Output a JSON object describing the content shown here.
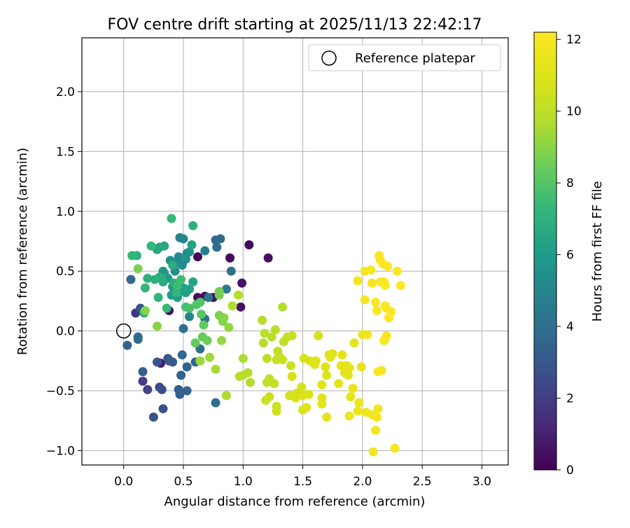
{
  "chart_data": {
    "type": "scatter",
    "title": "FOV centre drift starting at 2025/11/13 22:42:17",
    "xlabel": "Angular distance from reference (arcmin)",
    "ylabel": "Rotation from reference (arcmin)",
    "xlim": [
      -0.35,
      3.22
    ],
    "ylim": [
      -1.12,
      2.45
    ],
    "xticks": [
      0.0,
      0.5,
      1.0,
      1.5,
      2.0,
      2.5,
      3.0
    ],
    "xtick_labels": [
      "0.0",
      "0.5",
      "1.0",
      "1.5",
      "2.0",
      "2.5",
      "3.0"
    ],
    "yticks": [
      -1.0,
      -0.5,
      0.0,
      0.5,
      1.0,
      1.5,
      2.0
    ],
    "ytick_labels": [
      "−1.0",
      "−0.5",
      "0.0",
      "0.5",
      "1.0",
      "1.5",
      "2.0"
    ],
    "grid": true,
    "legend": {
      "placement": "top-right",
      "entries": [
        "Reference platepar"
      ]
    },
    "reference_point": {
      "x": 0.0,
      "y": 0.0,
      "label": "Reference platepar"
    },
    "colorbar": {
      "label": "Hours from first FF file",
      "colormap": "viridis",
      "range": [
        0,
        12.2
      ],
      "ticks": [
        0,
        2,
        4,
        6,
        8,
        10,
        12
      ],
      "tick_labels": [
        "0",
        "2",
        "4",
        "6",
        "8",
        "10",
        "12"
      ]
    },
    "points": [
      {
        "x": 0.62,
        "y": 0.62,
        "h": 0.2
      },
      {
        "x": 0.62,
        "y": 0.28,
        "h": 0.3
      },
      {
        "x": 0.68,
        "y": 0.29,
        "h": 0.4
      },
      {
        "x": 0.75,
        "y": 0.28,
        "h": 0.5
      },
      {
        "x": 0.38,
        "y": 0.17,
        "h": 0.6
      },
      {
        "x": 0.89,
        "y": 0.61,
        "h": 0.3
      },
      {
        "x": 1.05,
        "y": 0.72,
        "h": 0.2
      },
      {
        "x": 1.21,
        "y": 0.61,
        "h": 0.4
      },
      {
        "x": 0.99,
        "y": 0.4,
        "h": 0.6
      },
      {
        "x": 0.98,
        "y": 0.2,
        "h": 0.5
      },
      {
        "x": 0.31,
        "y": -0.27,
        "h": 0.9
      },
      {
        "x": 0.1,
        "y": 0.15,
        "h": 1.8
      },
      {
        "x": 0.16,
        "y": -0.42,
        "h": 2.0
      },
      {
        "x": 0.2,
        "y": -0.49,
        "h": 2.2
      },
      {
        "x": 0.3,
        "y": -0.47,
        "h": 2.4
      },
      {
        "x": 0.32,
        "y": -0.49,
        "h": 2.6
      },
      {
        "x": 0.33,
        "y": -0.65,
        "h": 2.7
      },
      {
        "x": 0.25,
        "y": -0.72,
        "h": 2.8
      },
      {
        "x": 0.28,
        "y": -0.26,
        "h": 2.9
      },
      {
        "x": 0.37,
        "y": -0.23,
        "h": 3.0
      },
      {
        "x": 0.38,
        "y": -0.25,
        "h": 3.1
      },
      {
        "x": 0.41,
        "y": -0.26,
        "h": 3.1
      },
      {
        "x": 0.46,
        "y": -0.49,
        "h": 3.2
      },
      {
        "x": 0.47,
        "y": -0.53,
        "h": 3.3
      },
      {
        "x": 0.48,
        "y": -0.37,
        "h": 3.4
      },
      {
        "x": 0.53,
        "y": -0.5,
        "h": 3.4
      },
      {
        "x": 0.53,
        "y": -0.3,
        "h": 3.5
      },
      {
        "x": 0.49,
        "y": -0.2,
        "h": 3.6
      },
      {
        "x": 0.6,
        "y": -0.26,
        "h": 3.7
      },
      {
        "x": 0.16,
        "y": -0.34,
        "h": 3.3
      },
      {
        "x": 0.03,
        "y": -0.12,
        "h": 3.5
      },
      {
        "x": 0.06,
        "y": 0.43,
        "h": 3.6
      },
      {
        "x": 0.12,
        "y": -0.07,
        "h": 3.7
      },
      {
        "x": 0.12,
        "y": -0.05,
        "h": 3.8
      },
      {
        "x": 0.14,
        "y": 0.19,
        "h": 2.8
      },
      {
        "x": 0.77,
        "y": -0.6,
        "h": 3.9
      },
      {
        "x": 0.5,
        "y": 0.02,
        "h": 4.0
      },
      {
        "x": 0.64,
        "y": -0.15,
        "h": 4.1
      },
      {
        "x": 0.68,
        "y": 0.1,
        "h": 4.2
      },
      {
        "x": 0.71,
        "y": 0.28,
        "h": 4.3
      },
      {
        "x": 0.77,
        "y": 0.76,
        "h": 3.7
      },
      {
        "x": 0.81,
        "y": 0.77,
        "h": 3.8
      },
      {
        "x": 0.78,
        "y": 0.7,
        "h": 3.9
      },
      {
        "x": 0.9,
        "y": 0.5,
        "h": 4.1
      },
      {
        "x": 0.86,
        "y": 0.35,
        "h": 4.5
      },
      {
        "x": 0.68,
        "y": 0.67,
        "h": 4.8
      },
      {
        "x": 0.55,
        "y": 0.12,
        "h": 5.0
      },
      {
        "x": 0.53,
        "y": 0.65,
        "h": 5.0
      },
      {
        "x": 0.47,
        "y": 0.78,
        "h": 5.1
      },
      {
        "x": 0.5,
        "y": 0.77,
        "h": 5.1
      },
      {
        "x": 0.46,
        "y": 0.62,
        "h": 5.2
      },
      {
        "x": 0.49,
        "y": 0.55,
        "h": 5.3
      },
      {
        "x": 0.45,
        "y": 0.57,
        "h": 5.2
      },
      {
        "x": 0.43,
        "y": 0.5,
        "h": 5.4
      },
      {
        "x": 0.52,
        "y": 0.6,
        "h": 5.5
      },
      {
        "x": 0.55,
        "y": 0.66,
        "h": 5.6
      },
      {
        "x": 0.39,
        "y": 0.59,
        "h": 5.6
      },
      {
        "x": 0.33,
        "y": 0.5,
        "h": 5.7
      },
      {
        "x": 0.34,
        "y": 0.48,
        "h": 5.8
      },
      {
        "x": 0.41,
        "y": 0.37,
        "h": 5.8
      },
      {
        "x": 0.37,
        "y": 0.44,
        "h": 5.9
      },
      {
        "x": 0.4,
        "y": 0.3,
        "h": 6.0
      },
      {
        "x": 0.45,
        "y": 0.28,
        "h": 6.0
      },
      {
        "x": 0.47,
        "y": 0.33,
        "h": 6.1
      },
      {
        "x": 0.5,
        "y": 0.36,
        "h": 6.2
      },
      {
        "x": 0.52,
        "y": 0.32,
        "h": 6.2
      },
      {
        "x": 0.55,
        "y": 0.35,
        "h": 6.3
      },
      {
        "x": 0.58,
        "y": 0.41,
        "h": 6.4
      },
      {
        "x": 0.57,
        "y": 0.72,
        "h": 6.4
      },
      {
        "x": 0.34,
        "y": 0.71,
        "h": 6.5
      },
      {
        "x": 0.3,
        "y": 0.7,
        "h": 6.6
      },
      {
        "x": 0.28,
        "y": 0.68,
        "h": 6.6
      },
      {
        "x": 0.33,
        "y": 0.41,
        "h": 6.7
      },
      {
        "x": 0.3,
        "y": 0.45,
        "h": 6.8
      },
      {
        "x": 0.32,
        "y": 0.44,
        "h": 6.9
      },
      {
        "x": 0.26,
        "y": 0.43,
        "h": 7.0
      },
      {
        "x": 0.2,
        "y": 0.44,
        "h": 7.0
      },
      {
        "x": 0.17,
        "y": 0.15,
        "h": 7.1
      },
      {
        "x": 0.29,
        "y": 0.28,
        "h": 7.1
      },
      {
        "x": 0.18,
        "y": 0.36,
        "h": 7.2
      },
      {
        "x": 0.11,
        "y": 0.63,
        "h": 7.0
      },
      {
        "x": 0.07,
        "y": 0.63,
        "h": 7.3
      },
      {
        "x": 0.23,
        "y": 0.71,
        "h": 7.2
      },
      {
        "x": 0.4,
        "y": 0.94,
        "h": 7.3
      },
      {
        "x": 0.58,
        "y": 0.88,
        "h": 7.0
      },
      {
        "x": 0.41,
        "y": 0.55,
        "h": 6.8
      },
      {
        "x": 0.42,
        "y": 0.4,
        "h": 6.9
      },
      {
        "x": 0.44,
        "y": 0.32,
        "h": 7.2
      },
      {
        "x": 0.36,
        "y": 0.19,
        "h": 7.4
      },
      {
        "x": 0.45,
        "y": 0.38,
        "h": 7.5
      },
      {
        "x": 0.48,
        "y": 0.43,
        "h": 7.6
      },
      {
        "x": 0.52,
        "y": 0.2,
        "h": 7.7
      },
      {
        "x": 0.55,
        "y": 0.19,
        "h": 7.8
      },
      {
        "x": 0.61,
        "y": 0.22,
        "h": 7.9
      },
      {
        "x": 0.64,
        "y": 0.24,
        "h": 8.0
      },
      {
        "x": 0.65,
        "y": 0.14,
        "h": 8.1
      },
      {
        "x": 0.67,
        "y": 0.05,
        "h": 8.2
      },
      {
        "x": 0.6,
        "y": -0.1,
        "h": 8.3
      },
      {
        "x": 0.66,
        "y": -0.05,
        "h": 8.4
      },
      {
        "x": 0.7,
        "y": -0.08,
        "h": 8.5
      },
      {
        "x": 0.8,
        "y": 0.33,
        "h": 8.6
      },
      {
        "x": 0.8,
        "y": 0.3,
        "h": 8.7
      },
      {
        "x": 0.8,
        "y": 0.13,
        "h": 8.8
      },
      {
        "x": 0.83,
        "y": 0.08,
        "h": 8.9
      },
      {
        "x": 0.84,
        "y": 0.11,
        "h": 9.0
      },
      {
        "x": 0.88,
        "y": 0.03,
        "h": 9.1
      },
      {
        "x": 0.82,
        "y": -0.08,
        "h": 9.2
      },
      {
        "x": 0.64,
        "y": -0.25,
        "h": 9.3
      },
      {
        "x": 0.72,
        "y": -0.22,
        "h": 9.4
      },
      {
        "x": 0.77,
        "y": -0.32,
        "h": 9.5
      },
      {
        "x": 0.86,
        "y": -0.54,
        "h": 9.6
      },
      {
        "x": 0.28,
        "y": 0.04,
        "h": 9.0
      },
      {
        "x": 0.18,
        "y": 0.17,
        "h": 8.9
      },
      {
        "x": 0.12,
        "y": 0.52,
        "h": 8.8
      },
      {
        "x": 0.91,
        "y": 0.21,
        "h": 9.7
      },
      {
        "x": 0.96,
        "y": 0.3,
        "h": 9.8
      },
      {
        "x": 0.97,
        "y": -0.38,
        "h": 9.9
      },
      {
        "x": 1.0,
        "y": -0.37,
        "h": 9.9
      },
      {
        "x": 1.04,
        "y": -0.35,
        "h": 9.8
      },
      {
        "x": 1.06,
        "y": -0.43,
        "h": 9.7
      },
      {
        "x": 1.0,
        "y": -0.23,
        "h": 9.6
      },
      {
        "x": 1.33,
        "y": 0.2,
        "h": 9.7
      },
      {
        "x": 1.16,
        "y": 0.09,
        "h": 9.8
      },
      {
        "x": 1.18,
        "y": -0.02,
        "h": 9.9
      },
      {
        "x": 1.2,
        "y": -0.23,
        "h": 10.0
      },
      {
        "x": 1.17,
        "y": -0.1,
        "h": 9.8
      },
      {
        "x": 1.24,
        "y": -0.05,
        "h": 9.9
      },
      {
        "x": 1.27,
        "y": 0.01,
        "h": 10.0
      },
      {
        "x": 1.29,
        "y": -0.17,
        "h": 10.1
      },
      {
        "x": 1.28,
        "y": -0.24,
        "h": 10.2
      },
      {
        "x": 1.3,
        "y": -0.21,
        "h": 10.3
      },
      {
        "x": 1.33,
        "y": -0.24,
        "h": 10.4
      },
      {
        "x": 1.34,
        "y": -0.09,
        "h": 10.1
      },
      {
        "x": 1.37,
        "y": -0.05,
        "h": 10.2
      },
      {
        "x": 1.41,
        "y": -0.04,
        "h": 10.3
      },
      {
        "x": 1.4,
        "y": -0.29,
        "h": 10.4
      },
      {
        "x": 1.2,
        "y": -0.43,
        "h": 10.1
      },
      {
        "x": 1.22,
        "y": -0.4,
        "h": 10.0
      },
      {
        "x": 1.26,
        "y": -0.44,
        "h": 10.2
      },
      {
        "x": 1.22,
        "y": -0.55,
        "h": 10.3
      },
      {
        "x": 1.19,
        "y": -0.58,
        "h": 10.4
      },
      {
        "x": 1.28,
        "y": -0.63,
        "h": 10.5
      },
      {
        "x": 1.28,
        "y": -0.67,
        "h": 10.5
      },
      {
        "x": 1.39,
        "y": -0.54,
        "h": 10.6
      },
      {
        "x": 1.45,
        "y": -0.52,
        "h": 10.7
      },
      {
        "x": 1.49,
        "y": -0.47,
        "h": 10.7
      },
      {
        "x": 1.41,
        "y": -0.38,
        "h": 10.8
      },
      {
        "x": 1.44,
        "y": -0.56,
        "h": 10.8
      },
      {
        "x": 1.5,
        "y": -0.54,
        "h": 10.9
      },
      {
        "x": 1.5,
        "y": -0.66,
        "h": 10.9
      },
      {
        "x": 1.53,
        "y": -0.64,
        "h": 11.0
      },
      {
        "x": 1.55,
        "y": -0.53,
        "h": 11.0
      },
      {
        "x": 1.51,
        "y": -0.23,
        "h": 10.8
      },
      {
        "x": 1.56,
        "y": -0.25,
        "h": 10.9
      },
      {
        "x": 1.6,
        "y": -0.28,
        "h": 11.0
      },
      {
        "x": 1.61,
        "y": -0.25,
        "h": 11.0
      },
      {
        "x": 1.63,
        "y": -0.04,
        "h": 10.7
      },
      {
        "x": 1.66,
        "y": -0.45,
        "h": 11.1
      },
      {
        "x": 1.69,
        "y": -0.3,
        "h": 11.0
      },
      {
        "x": 1.7,
        "y": -0.37,
        "h": 11.1
      },
      {
        "x": 1.7,
        "y": -0.72,
        "h": 11.2
      },
      {
        "x": 1.66,
        "y": -0.56,
        "h": 11.1
      },
      {
        "x": 1.66,
        "y": -0.61,
        "h": 11.2
      },
      {
        "x": 1.72,
        "y": -0.2,
        "h": 11.0
      },
      {
        "x": 1.75,
        "y": -0.19,
        "h": 11.1
      },
      {
        "x": 1.73,
        "y": -0.22,
        "h": 11.2
      },
      {
        "x": 1.8,
        "y": -0.44,
        "h": 11.2
      },
      {
        "x": 1.82,
        "y": -0.29,
        "h": 11.3
      },
      {
        "x": 1.83,
        "y": -0.2,
        "h": 11.2
      },
      {
        "x": 1.85,
        "y": -0.35,
        "h": 11.3
      },
      {
        "x": 1.87,
        "y": -0.29,
        "h": 11.3
      },
      {
        "x": 1.89,
        "y": -0.31,
        "h": 11.4
      },
      {
        "x": 1.88,
        "y": -0.37,
        "h": 11.3
      },
      {
        "x": 1.9,
        "y": -0.55,
        "h": 11.4
      },
      {
        "x": 1.92,
        "y": -0.48,
        "h": 11.4
      },
      {
        "x": 1.89,
        "y": -0.71,
        "h": 11.5
      },
      {
        "x": 1.93,
        "y": -0.1,
        "h": 11.3
      },
      {
        "x": 1.96,
        "y": -0.67,
        "h": 11.5
      },
      {
        "x": 1.97,
        "y": -0.6,
        "h": 11.6
      },
      {
        "x": 1.99,
        "y": -0.3,
        "h": 11.4
      },
      {
        "x": 2.0,
        "y": -0.03,
        "h": 11.6
      },
      {
        "x": 2.03,
        "y": -0.68,
        "h": 11.6
      },
      {
        "x": 2.04,
        "y": -0.03,
        "h": 11.7
      },
      {
        "x": 2.08,
        "y": -0.7,
        "h": 11.7
      },
      {
        "x": 2.09,
        "y": -1.01,
        "h": 11.7
      },
      {
        "x": 2.11,
        "y": -0.83,
        "h": 11.8
      },
      {
        "x": 2.12,
        "y": -0.72,
        "h": 11.8
      },
      {
        "x": 2.13,
        "y": -0.65,
        "h": 11.8
      },
      {
        "x": 2.13,
        "y": -0.34,
        "h": 11.9
      },
      {
        "x": 2.16,
        "y": -0.33,
        "h": 11.9
      },
      {
        "x": 2.27,
        "y": -0.98,
        "h": 12.0
      },
      {
        "x": 2.18,
        "y": -0.08,
        "h": 11.9
      },
      {
        "x": 2.19,
        "y": -0.07,
        "h": 12.0
      },
      {
        "x": 2.2,
        "y": -0.04,
        "h": 12.0
      },
      {
        "x": 1.96,
        "y": 0.42,
        "h": 11.8
      },
      {
        "x": 2.02,
        "y": 0.5,
        "h": 11.9
      },
      {
        "x": 2.02,
        "y": 0.26,
        "h": 11.9
      },
      {
        "x": 2.07,
        "y": 0.51,
        "h": 12.0
      },
      {
        "x": 2.08,
        "y": 0.4,
        "h": 12.0
      },
      {
        "x": 2.11,
        "y": 0.24,
        "h": 12.0
      },
      {
        "x": 2.12,
        "y": 0.17,
        "h": 12.1
      },
      {
        "x": 2.14,
        "y": 0.63,
        "h": 12.1
      },
      {
        "x": 2.15,
        "y": 0.59,
        "h": 12.1
      },
      {
        "x": 2.15,
        "y": 0.41,
        "h": 12.1
      },
      {
        "x": 2.17,
        "y": 0.56,
        "h": 12.1
      },
      {
        "x": 2.19,
        "y": 0.38,
        "h": 12.2
      },
      {
        "x": 2.19,
        "y": 0.21,
        "h": 12.1
      },
      {
        "x": 2.2,
        "y": 0.19,
        "h": 12.2
      },
      {
        "x": 2.21,
        "y": 0.54,
        "h": 12.2
      },
      {
        "x": 2.22,
        "y": 0.11,
        "h": 12.2
      },
      {
        "x": 2.24,
        "y": 0.16,
        "h": 12.2
      },
      {
        "x": 2.29,
        "y": 0.5,
        "h": 12.2
      },
      {
        "x": 2.32,
        "y": 0.38,
        "h": 12.2
      },
      {
        "x": 2.18,
        "y": 0.41,
        "h": 12.1
      }
    ]
  }
}
